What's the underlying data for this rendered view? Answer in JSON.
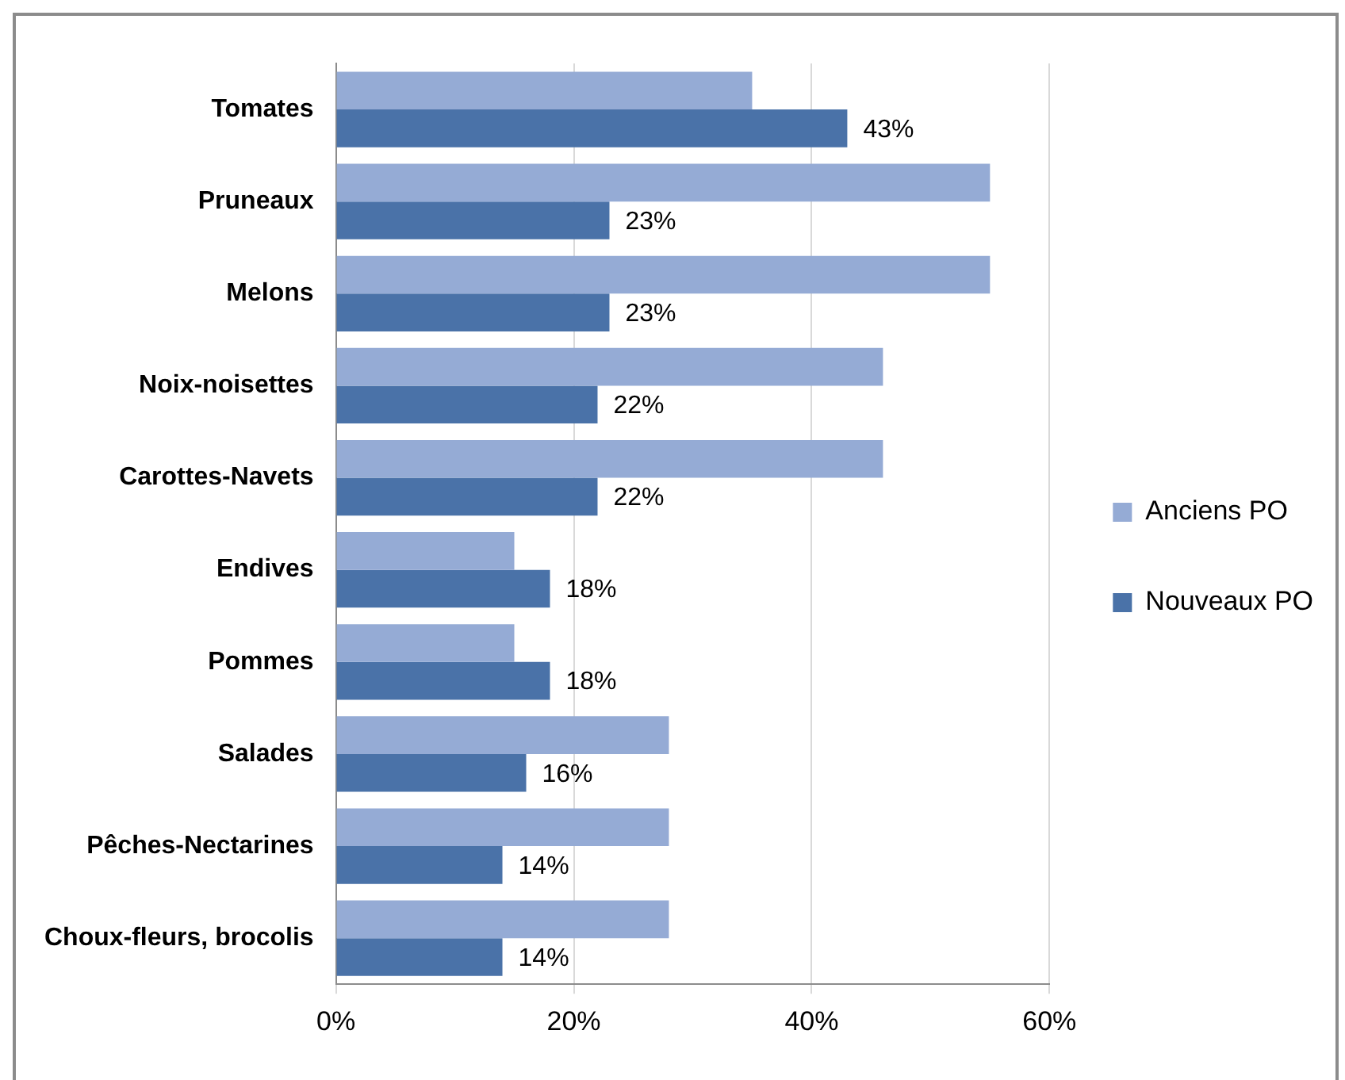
{
  "chart_data": {
    "type": "bar",
    "orientation": "horizontal",
    "categories": [
      "Tomates",
      "Pruneaux",
      "Melons",
      "Noix-noisettes",
      "Carottes-Navets",
      "Endives",
      "Pommes",
      "Salades",
      "Pêches-Nectarines",
      "Choux-fleurs, brocolis"
    ],
    "series": [
      {
        "name": "Anciens PO",
        "color": "#95abd5",
        "values": [
          35,
          55,
          55,
          46,
          46,
          15,
          15,
          28,
          28,
          28
        ]
      },
      {
        "name": "Nouveaux PO",
        "color": "#4a72a8",
        "values": [
          43,
          23,
          23,
          22,
          22,
          18,
          18,
          16,
          14,
          14
        ],
        "value_labels": [
          "43%",
          "23%",
          "23%",
          "22%",
          "22%",
          "18%",
          "18%",
          "16%",
          "14%",
          "14%"
        ]
      }
    ],
    "xlim": [
      0,
      60
    ],
    "xticks": [
      {
        "value": 0,
        "label": "0%"
      },
      {
        "value": 20,
        "label": "20%"
      },
      {
        "value": 40,
        "label": "40%"
      },
      {
        "value": 60,
        "label": "60%"
      }
    ],
    "grid": "x",
    "legend": "right"
  }
}
